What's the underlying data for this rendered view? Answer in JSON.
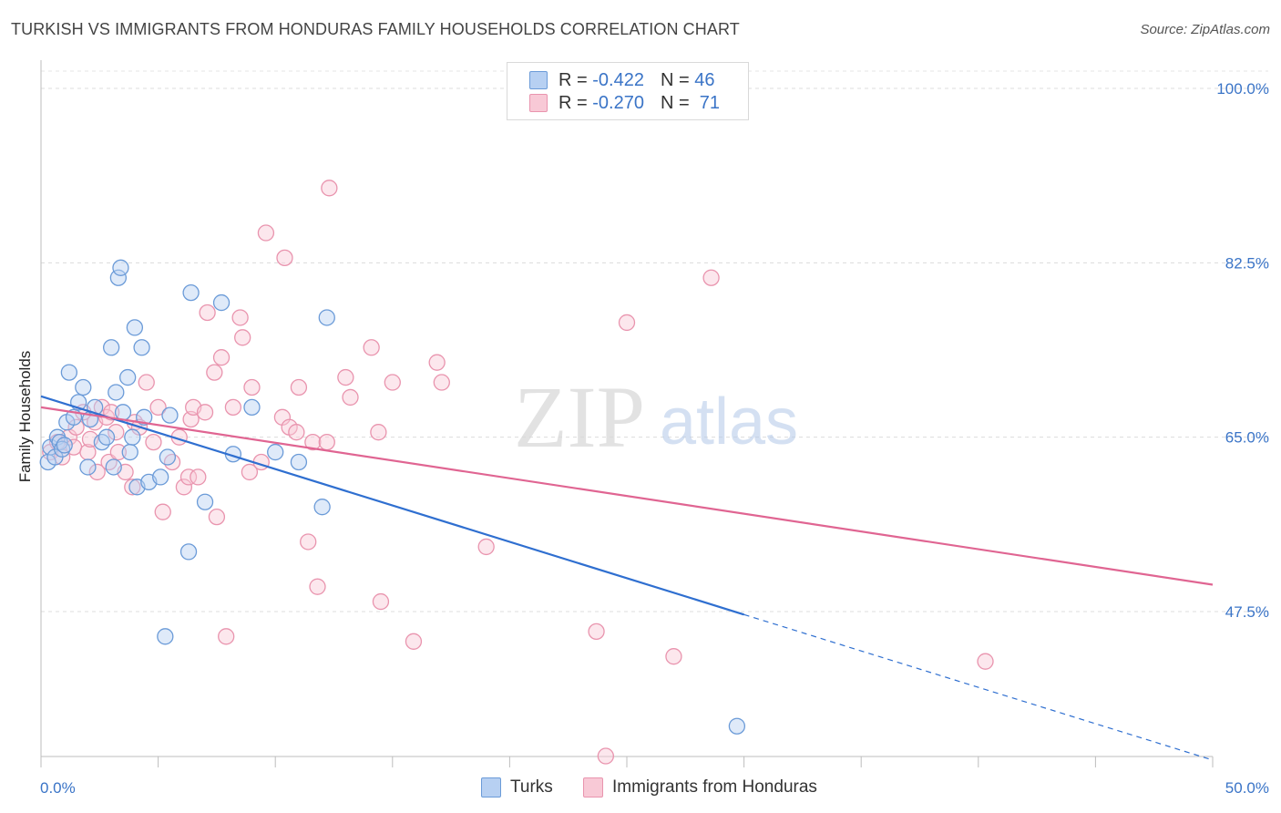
{
  "title": "TURKISH VS IMMIGRANTS FROM HONDURAS FAMILY HOUSEHOLDS CORRELATION CHART",
  "source": "Source: ZipAtlas.com",
  "watermark": {
    "zip": "ZIP",
    "atlas": "atlas"
  },
  "legend": {
    "r_label": "R =",
    "n_label": "N =",
    "turks": {
      "r": "-0.422",
      "n": "46"
    },
    "honduras": {
      "r": "-0.270",
      "n": "71"
    }
  },
  "colors": {
    "turks_fill": "#b7d0f2",
    "turks_stroke": "#6b9bd8",
    "turks_line": "#2f6fd0",
    "honduras_fill": "#f8c9d6",
    "honduras_stroke": "#e994ae",
    "honduras_line": "#e06592",
    "tick_label": "#3a74c7"
  },
  "chart_data": {
    "type": "scatter",
    "title": "TURKISH VS IMMIGRANTS FROM HONDURAS FAMILY HOUSEHOLDS CORRELATION CHART",
    "xlabel": "",
    "ylabel": "Family Households",
    "xlim": [
      0,
      50
    ],
    "ylim": [
      30.5,
      102
    ],
    "x_tick_labels": [
      "0.0%",
      "50.0%"
    ],
    "y_ticks": [
      47.5,
      65.0,
      82.5,
      100.0
    ],
    "y_tick_labels": [
      "47.5%",
      "65.0%",
      "82.5%",
      "100.0%"
    ],
    "grid": true,
    "legend_position": "bottom",
    "series": [
      {
        "name": "Turks",
        "r": -0.422,
        "n": 46,
        "trend": {
          "x0": 0,
          "y0": 69.1,
          "x1": 30,
          "y1": 47.2,
          "dashed_to_x": 50,
          "dashed_to_y": 32.6
        },
        "points": [
          [
            0.3,
            62.5
          ],
          [
            0.4,
            64.0
          ],
          [
            0.6,
            63.0
          ],
          [
            0.7,
            65.0
          ],
          [
            0.8,
            64.5
          ],
          [
            0.9,
            63.8
          ],
          [
            1.0,
            64.2
          ],
          [
            1.1,
            66.5
          ],
          [
            1.2,
            71.5
          ],
          [
            1.4,
            67.0
          ],
          [
            1.6,
            68.5
          ],
          [
            1.8,
            70.0
          ],
          [
            2.0,
            62.0
          ],
          [
            2.1,
            66.8
          ],
          [
            2.3,
            68.0
          ],
          [
            2.6,
            64.5
          ],
          [
            2.8,
            65.0
          ],
          [
            3.0,
            74.0
          ],
          [
            3.1,
            62.0
          ],
          [
            3.2,
            69.5
          ],
          [
            3.3,
            81.0
          ],
          [
            3.4,
            82.0
          ],
          [
            3.5,
            67.5
          ],
          [
            3.7,
            71.0
          ],
          [
            3.8,
            63.5
          ],
          [
            3.9,
            65.0
          ],
          [
            4.0,
            76.0
          ],
          [
            4.1,
            60.0
          ],
          [
            4.3,
            74.0
          ],
          [
            4.4,
            67.0
          ],
          [
            4.6,
            60.5
          ],
          [
            5.1,
            61.0
          ],
          [
            5.3,
            45.0
          ],
          [
            5.4,
            63.0
          ],
          [
            5.5,
            67.2
          ],
          [
            6.3,
            53.5
          ],
          [
            6.4,
            79.5
          ],
          [
            7.0,
            58.5
          ],
          [
            7.7,
            78.5
          ],
          [
            8.2,
            63.3
          ],
          [
            9.0,
            68.0
          ],
          [
            10.0,
            63.5
          ],
          [
            11.0,
            62.5
          ],
          [
            12.0,
            58.0
          ],
          [
            12.2,
            77.0
          ],
          [
            29.7,
            36.0
          ]
        ]
      },
      {
        "name": "Immigrants from Honduras",
        "r": -0.27,
        "n": 71,
        "trend": {
          "x0": 0,
          "y0": 68.0,
          "x1": 50,
          "y1": 50.2
        },
        "points": [
          [
            0.4,
            63.5
          ],
          [
            0.7,
            64.5
          ],
          [
            0.9,
            63.0
          ],
          [
            1.2,
            65.0
          ],
          [
            1.4,
            64.0
          ],
          [
            1.5,
            66.0
          ],
          [
            1.8,
            67.5
          ],
          [
            2.0,
            63.5
          ],
          [
            2.1,
            64.8
          ],
          [
            2.3,
            66.5
          ],
          [
            2.4,
            61.5
          ],
          [
            2.6,
            68.0
          ],
          [
            2.8,
            67.0
          ],
          [
            2.9,
            62.5
          ],
          [
            3.0,
            67.5
          ],
          [
            3.2,
            65.5
          ],
          [
            3.3,
            63.5
          ],
          [
            3.6,
            61.5
          ],
          [
            3.9,
            60.0
          ],
          [
            4.0,
            66.5
          ],
          [
            4.2,
            66.0
          ],
          [
            4.5,
            70.5
          ],
          [
            4.8,
            64.5
          ],
          [
            5.0,
            68.0
          ],
          [
            5.2,
            57.5
          ],
          [
            5.6,
            62.5
          ],
          [
            5.9,
            65.0
          ],
          [
            6.1,
            60.0
          ],
          [
            6.3,
            61.0
          ],
          [
            6.4,
            66.8
          ],
          [
            6.5,
            68.0
          ],
          [
            6.7,
            61.0
          ],
          [
            7.0,
            67.5
          ],
          [
            7.1,
            77.5
          ],
          [
            7.4,
            71.5
          ],
          [
            7.5,
            57.0
          ],
          [
            7.7,
            73.0
          ],
          [
            7.9,
            45.0
          ],
          [
            8.2,
            68.0
          ],
          [
            8.5,
            77.0
          ],
          [
            8.6,
            75.0
          ],
          [
            8.9,
            61.5
          ],
          [
            9.0,
            70.0
          ],
          [
            9.4,
            62.5
          ],
          [
            9.6,
            85.5
          ],
          [
            10.3,
            67.0
          ],
          [
            10.4,
            83.0
          ],
          [
            10.6,
            66.0
          ],
          [
            10.9,
            65.5
          ],
          [
            11.0,
            70.0
          ],
          [
            11.4,
            54.5
          ],
          [
            11.6,
            64.5
          ],
          [
            11.8,
            50.0
          ],
          [
            12.2,
            64.5
          ],
          [
            12.3,
            90.0
          ],
          [
            13.0,
            71.0
          ],
          [
            13.2,
            69.0
          ],
          [
            14.1,
            74.0
          ],
          [
            14.4,
            65.5
          ],
          [
            14.5,
            48.5
          ],
          [
            15.0,
            70.5
          ],
          [
            15.9,
            44.5
          ],
          [
            16.9,
            72.5
          ],
          [
            17.1,
            70.5
          ],
          [
            19.0,
            54.0
          ],
          [
            23.7,
            45.5
          ],
          [
            24.1,
            33.0
          ],
          [
            25.0,
            76.5
          ],
          [
            27.0,
            43.0
          ],
          [
            28.6,
            81.0
          ],
          [
            40.3,
            42.5
          ]
        ]
      }
    ]
  }
}
